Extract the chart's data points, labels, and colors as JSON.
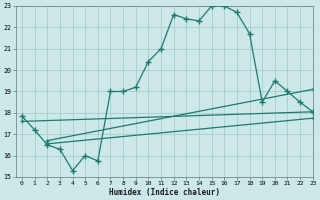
{
  "bg_color": "#cce8e8",
  "grid_color": "#a8cccc",
  "line_color": "#1e7a6e",
  "ylim": [
    15,
    23
  ],
  "xlim": [
    -0.5,
    23
  ],
  "xlabel": "Humidex (Indice chaleur)",
  "yticks": [
    15,
    16,
    17,
    18,
    19,
    20,
    21,
    22,
    23
  ],
  "xticks": [
    0,
    1,
    2,
    3,
    4,
    5,
    6,
    7,
    8,
    9,
    10,
    11,
    12,
    13,
    14,
    15,
    16,
    17,
    18,
    19,
    20,
    21,
    22,
    23
  ],
  "main_x": [
    0,
    1,
    2,
    3,
    4,
    5,
    6,
    7,
    8,
    9,
    10,
    11,
    12,
    13,
    14,
    15,
    16,
    17,
    18,
    19,
    20,
    21,
    22,
    23
  ],
  "main_y": [
    17.85,
    17.2,
    16.5,
    16.3,
    15.3,
    16.0,
    15.75,
    19.0,
    19.0,
    19.2,
    20.4,
    21.0,
    22.6,
    22.4,
    22.3,
    23.0,
    23.0,
    22.7,
    21.7,
    18.5,
    19.5,
    19.0,
    18.5,
    18.05
  ],
  "line2_x": [
    0,
    23
  ],
  "line2_y": [
    17.6,
    18.05
  ],
  "line3_x": [
    2,
    23
  ],
  "line3_y": [
    16.7,
    19.1
  ],
  "line4_x": [
    2,
    23
  ],
  "line4_y": [
    16.55,
    17.75
  ]
}
